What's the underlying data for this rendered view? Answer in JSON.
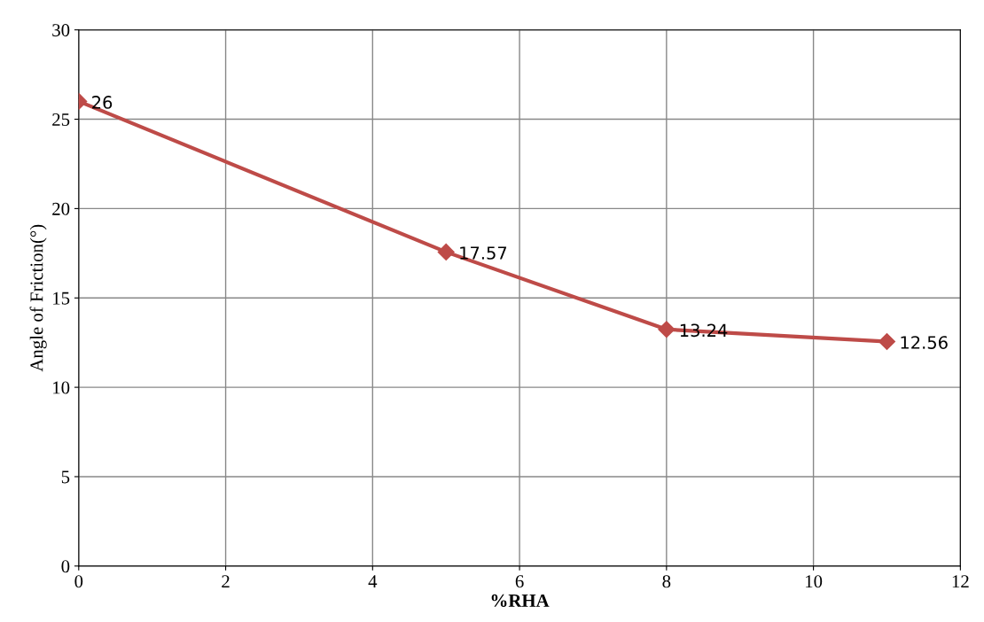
{
  "chart_data": {
    "type": "line",
    "xlabel": "%RHA",
    "ylabel": "Angle of Friction(°)",
    "x": [
      0,
      5,
      8,
      11
    ],
    "series": [
      {
        "color": "#be4b48",
        "values": [
          26,
          17.57,
          13.24,
          12.56
        ]
      }
    ],
    "xlim": [
      0,
      12
    ],
    "xticks": [
      0,
      2,
      4,
      6,
      8,
      10,
      12
    ],
    "ylim": [
      0,
      30
    ],
    "yticks": [
      0,
      5,
      10,
      15,
      20,
      25,
      30
    ],
    "grid": true,
    "marker": "diamond",
    "data_labels": true
  }
}
